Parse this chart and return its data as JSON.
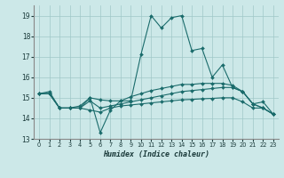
{
  "xlabel": "Humidex (Indice chaleur)",
  "xlim": [
    -0.5,
    23.5
  ],
  "ylim": [
    13,
    19.5
  ],
  "yticks": [
    13,
    14,
    15,
    16,
    17,
    18,
    19
  ],
  "xticks": [
    0,
    1,
    2,
    3,
    4,
    5,
    6,
    7,
    8,
    9,
    10,
    11,
    12,
    13,
    14,
    15,
    16,
    17,
    18,
    19,
    20,
    21,
    22,
    23
  ],
  "bg_color": "#cce8e8",
  "grid_color": "#a0c8c8",
  "line_color": "#1a6b6b",
  "series": [
    [
      15.2,
      15.3,
      14.5,
      14.5,
      14.5,
      15.0,
      13.3,
      14.4,
      14.85,
      14.85,
      17.1,
      19.0,
      18.4,
      18.9,
      19.0,
      17.3,
      17.4,
      16.0,
      16.6,
      15.5,
      15.3,
      14.7,
      14.8,
      14.2
    ],
    [
      15.2,
      15.2,
      14.5,
      14.5,
      14.5,
      14.4,
      14.3,
      14.5,
      14.6,
      14.65,
      14.7,
      14.75,
      14.8,
      14.85,
      14.9,
      14.92,
      14.95,
      14.97,
      15.0,
      15.0,
      14.8,
      14.5,
      14.5,
      14.2
    ],
    [
      15.2,
      15.2,
      14.5,
      14.5,
      14.5,
      14.85,
      14.5,
      14.6,
      14.7,
      14.8,
      14.9,
      15.0,
      15.1,
      15.2,
      15.3,
      15.35,
      15.4,
      15.45,
      15.5,
      15.5,
      15.3,
      14.7,
      14.5,
      14.2
    ],
    [
      15.2,
      15.2,
      14.5,
      14.5,
      14.6,
      15.0,
      14.9,
      14.85,
      14.85,
      15.05,
      15.2,
      15.35,
      15.45,
      15.55,
      15.65,
      15.65,
      15.7,
      15.7,
      15.7,
      15.6,
      15.3,
      14.7,
      14.5,
      14.2
    ]
  ]
}
